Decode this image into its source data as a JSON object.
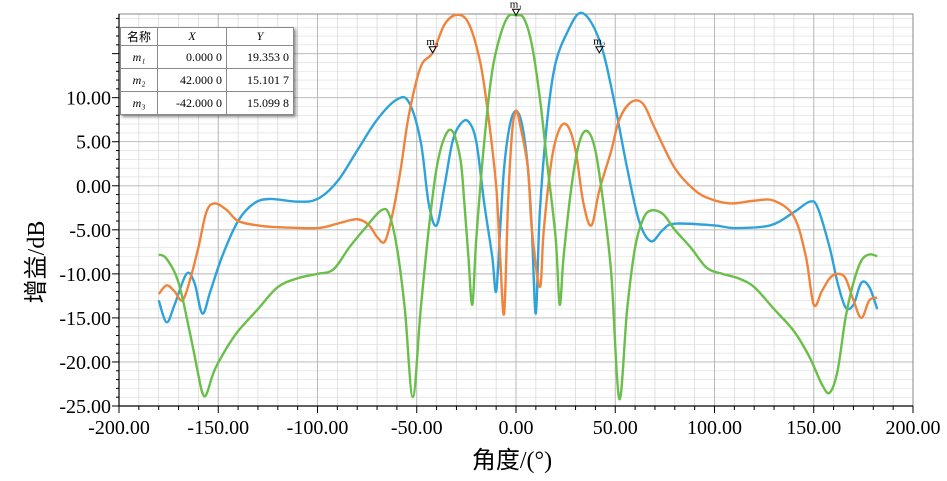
{
  "chart_data": {
    "type": "line",
    "xlabel": "角度/(°)",
    "ylabel": "增益/dB",
    "xlim": [
      -200,
      200
    ],
    "ylim": [
      -25,
      19.5
    ],
    "x_ticks": [
      "-200.00",
      "-150.00",
      "-100.00",
      "-50.00",
      "0.00",
      "50.00",
      "100.00",
      "150.00",
      "200.00"
    ],
    "y_ticks": [
      "10.00",
      "5.00",
      "0.00",
      "-5.00",
      "-10.00",
      "-15.00",
      "-20.00",
      "-25.00"
    ],
    "grid": true,
    "series": [
      {
        "color": "#2fa3d9",
        "points": [
          [
            -180,
            -13
          ],
          [
            -176,
            -15.5
          ],
          [
            -172,
            -13.5
          ],
          [
            -166,
            -10
          ],
          [
            -162,
            -11
          ],
          [
            -158,
            -14.5
          ],
          [
            -154,
            -12
          ],
          [
            -148,
            -8
          ],
          [
            -140,
            -4
          ],
          [
            -132,
            -2
          ],
          [
            -124,
            -1.5
          ],
          [
            -110,
            -1.8
          ],
          [
            -100,
            -1.5
          ],
          [
            -90,
            0.5
          ],
          [
            -80,
            4
          ],
          [
            -70,
            7.5
          ],
          [
            -60,
            9.8
          ],
          [
            -54,
            9.5
          ],
          [
            -48,
            5
          ],
          [
            -44,
            -2
          ],
          [
            -40,
            -4.5
          ],
          [
            -36,
            0
          ],
          [
            -32,
            5
          ],
          [
            -28,
            7
          ],
          [
            -24,
            7.3
          ],
          [
            -20,
            5
          ],
          [
            -16,
            -2
          ],
          [
            -12,
            -8
          ],
          [
            -10,
            -12
          ],
          [
            -8,
            -5
          ],
          [
            -6,
            2
          ],
          [
            -3,
            7
          ],
          [
            0,
            8.5
          ],
          [
            3,
            7
          ],
          [
            6,
            2
          ],
          [
            8,
            -5
          ],
          [
            10,
            -14.5
          ],
          [
            12,
            -3
          ],
          [
            16,
            8
          ],
          [
            20,
            14
          ],
          [
            26,
            17.5
          ],
          [
            32,
            19.6
          ],
          [
            38,
            18.5
          ],
          [
            44,
            15.1
          ],
          [
            50,
            9
          ],
          [
            56,
            2
          ],
          [
            62,
            -4
          ],
          [
            68,
            -6.3
          ],
          [
            74,
            -5
          ],
          [
            80,
            -4.3
          ],
          [
            100,
            -4.5
          ],
          [
            110,
            -4.8
          ],
          [
            128,
            -4.5
          ],
          [
            140,
            -3
          ],
          [
            148,
            -1.8
          ],
          [
            152,
            -2.5
          ],
          [
            158,
            -7
          ],
          [
            162,
            -11
          ],
          [
            166,
            -13.8
          ],
          [
            170,
            -13.5
          ],
          [
            174,
            -11
          ],
          [
            178,
            -11.5
          ],
          [
            182,
            -14
          ]
        ]
      },
      {
        "color": "#f0843c",
        "points": [
          [
            -180,
            -12.3
          ],
          [
            -176,
            -11.3
          ],
          [
            -172,
            -12
          ],
          [
            -168,
            -13
          ],
          [
            -164,
            -10.5
          ],
          [
            -160,
            -7
          ],
          [
            -156,
            -3
          ],
          [
            -152,
            -2
          ],
          [
            -146,
            -2.7
          ],
          [
            -140,
            -4
          ],
          [
            -130,
            -4.5
          ],
          [
            -120,
            -4.7
          ],
          [
            -100,
            -4.8
          ],
          [
            -90,
            -4.3
          ],
          [
            -80,
            -3.8
          ],
          [
            -74,
            -4.5
          ],
          [
            -70,
            -5.8
          ],
          [
            -66,
            -6.3
          ],
          [
            -62,
            -3
          ],
          [
            -58,
            2
          ],
          [
            -54,
            8
          ],
          [
            -48,
            13.5
          ],
          [
            -42,
            15.1
          ],
          [
            -36,
            18.3
          ],
          [
            -30,
            19.4
          ],
          [
            -24,
            18.5
          ],
          [
            -18,
            14
          ],
          [
            -14,
            8
          ],
          [
            -10,
            0
          ],
          [
            -8,
            -8
          ],
          [
            -6,
            -14.5
          ],
          [
            -4,
            -2
          ],
          [
            -2,
            6
          ],
          [
            0,
            8.5
          ],
          [
            2,
            7
          ],
          [
            6,
            2
          ],
          [
            8,
            -5
          ],
          [
            12,
            -11.5
          ],
          [
            14,
            -5
          ],
          [
            18,
            3
          ],
          [
            22,
            6.5
          ],
          [
            26,
            6.8
          ],
          [
            30,
            4
          ],
          [
            34,
            -2
          ],
          [
            38,
            -4.5
          ],
          [
            42,
            -0.5
          ],
          [
            48,
            4
          ],
          [
            52,
            7.5
          ],
          [
            58,
            9.5
          ],
          [
            64,
            9.3
          ],
          [
            70,
            6.5
          ],
          [
            80,
            2
          ],
          [
            90,
            -0.5
          ],
          [
            98,
            -1.5
          ],
          [
            108,
            -2
          ],
          [
            120,
            -1.7
          ],
          [
            130,
            -1.7
          ],
          [
            140,
            -3.5
          ],
          [
            146,
            -8
          ],
          [
            150,
            -13.5
          ],
          [
            154,
            -12
          ],
          [
            158,
            -10.5
          ],
          [
            162,
            -10
          ],
          [
            166,
            -10.5
          ],
          [
            170,
            -13
          ],
          [
            174,
            -15
          ],
          [
            178,
            -13
          ],
          [
            182,
            -12.7
          ]
        ]
      },
      {
        "color": "#6abf4b",
        "points": [
          [
            -180,
            -7.8
          ],
          [
            -176,
            -8.3
          ],
          [
            -170,
            -11
          ],
          [
            -164,
            -17
          ],
          [
            -160,
            -21.5
          ],
          [
            -158,
            -23.5
          ],
          [
            -156,
            -23.7
          ],
          [
            -152,
            -21
          ],
          [
            -146,
            -18.5
          ],
          [
            -140,
            -16.5
          ],
          [
            -130,
            -14
          ],
          [
            -120,
            -11.5
          ],
          [
            -110,
            -10.5
          ],
          [
            -100,
            -10
          ],
          [
            -92,
            -9.5
          ],
          [
            -84,
            -7
          ],
          [
            -76,
            -4.8
          ],
          [
            -68,
            -2.8
          ],
          [
            -64,
            -3.2
          ],
          [
            -60,
            -7
          ],
          [
            -56,
            -14
          ],
          [
            -52,
            -24
          ],
          [
            -48,
            -14
          ],
          [
            -44,
            -5
          ],
          [
            -40,
            2
          ],
          [
            -36,
            5.5
          ],
          [
            -32,
            6.2
          ],
          [
            -28,
            3
          ],
          [
            -26,
            -2
          ],
          [
            -24,
            -8
          ],
          [
            -22,
            -13.5
          ],
          [
            -20,
            -6
          ],
          [
            -16,
            5
          ],
          [
            -12,
            13
          ],
          [
            -8,
            17
          ],
          [
            -4,
            19.2
          ],
          [
            0,
            19.35
          ],
          [
            4,
            19
          ],
          [
            8,
            16
          ],
          [
            12,
            10
          ],
          [
            16,
            2
          ],
          [
            20,
            -6
          ],
          [
            22,
            -13.5
          ],
          [
            24,
            -8
          ],
          [
            28,
            0
          ],
          [
            32,
            5
          ],
          [
            36,
            6.2
          ],
          [
            40,
            4
          ],
          [
            44,
            -2
          ],
          [
            48,
            -10
          ],
          [
            52,
            -24.2
          ],
          [
            56,
            -14
          ],
          [
            60,
            -7
          ],
          [
            64,
            -3.8
          ],
          [
            68,
            -2.8
          ],
          [
            74,
            -3.2
          ],
          [
            80,
            -5
          ],
          [
            88,
            -7
          ],
          [
            96,
            -9.3
          ],
          [
            104,
            -10
          ],
          [
            112,
            -10.5
          ],
          [
            120,
            -11.5
          ],
          [
            130,
            -14
          ],
          [
            140,
            -16.5
          ],
          [
            148,
            -19.5
          ],
          [
            154,
            -22.5
          ],
          [
            158,
            -23.5
          ],
          [
            162,
            -21
          ],
          [
            166,
            -15
          ],
          [
            170,
            -11
          ],
          [
            174,
            -8.5
          ],
          [
            178,
            -7.8
          ],
          [
            182,
            -8
          ]
        ]
      }
    ],
    "markers": {
      "headers": [
        "名称",
        "X",
        "Y"
      ],
      "rows": [
        {
          "name": "m₁",
          "x": "0.000 0",
          "y": "19.353 0",
          "x_val": 0,
          "y_val": 19.353
        },
        {
          "name": "m₂",
          "x": "42.000 0",
          "y": "15.101 7",
          "x_val": 42,
          "y_val": 15.1017
        },
        {
          "name": "m₃",
          "x": "-42.000 0",
          "y": "15.099 8",
          "x_val": -42,
          "y_val": 15.0998
        }
      ]
    }
  }
}
